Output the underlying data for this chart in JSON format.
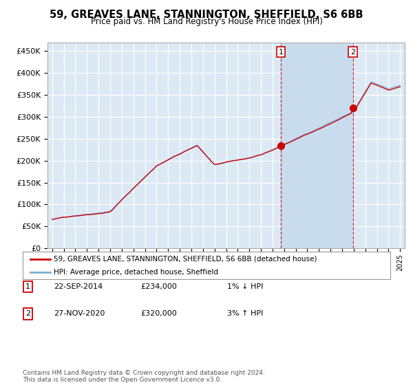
{
  "title": "59, GREAVES LANE, STANNINGTON, SHEFFIELD, S6 6BB",
  "subtitle": "Price paid vs. HM Land Registry's House Price Index (HPI)",
  "legend_line1": "59, GREAVES LANE, STANNINGTON, SHEFFIELD, S6 6BB (detached house)",
  "legend_line2": "HPI: Average price, detached house, Sheffield",
  "annotation1_label": "1",
  "annotation1_date": "22-SEP-2014",
  "annotation1_price": "£234,000",
  "annotation1_hpi": "1% ↓ HPI",
  "annotation2_label": "2",
  "annotation2_date": "27-NOV-2020",
  "annotation2_price": "£320,000",
  "annotation2_hpi": "3% ↑ HPI",
  "footer": "Contains HM Land Registry data © Crown copyright and database right 2024.\nThis data is licensed under the Open Government Licence v3.0.",
  "background_color": "#ffffff",
  "plot_bg_color": "#dce9f5",
  "grid_color": "#ffffff",
  "hpi_color": "#7bafd4",
  "price_color": "#cc0000",
  "point_color": "#cc0000",
  "vline_color": "#cc0000",
  "ylim": [
    0,
    470000
  ],
  "yticks": [
    0,
    50000,
    100000,
    150000,
    200000,
    250000,
    300000,
    350000,
    400000,
    450000
  ],
  "sale1_year": 2014.73,
  "sale2_year": 2020.92,
  "sale1_value": 234000,
  "sale2_value": 320000,
  "xstart": 1995,
  "xend": 2025
}
